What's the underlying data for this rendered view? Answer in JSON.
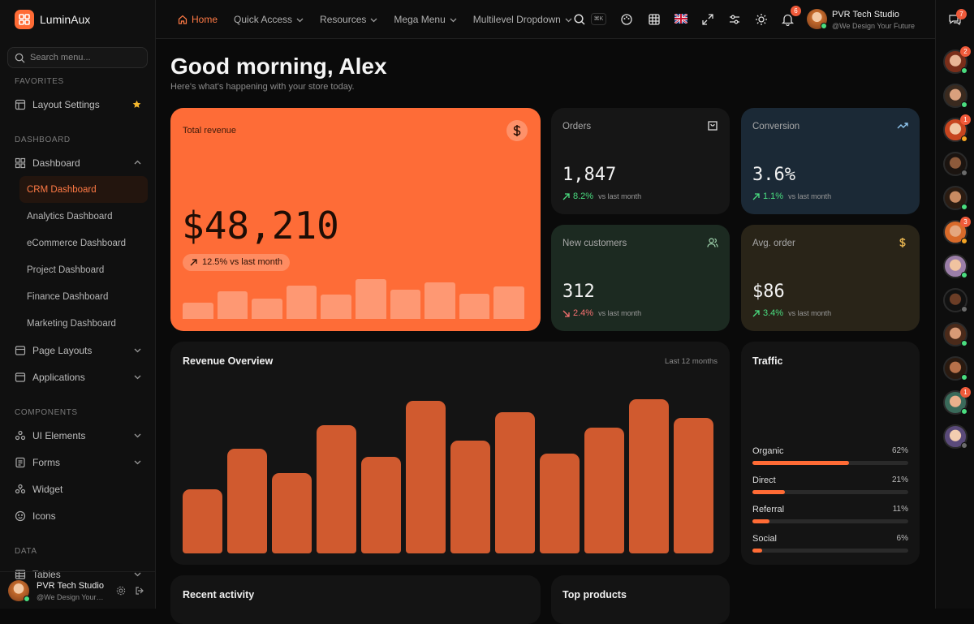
{
  "brand": "LuminAux",
  "search_placeholder": "Search menu...",
  "sidebar": {
    "sections": [
      {
        "title": "FAVORITES",
        "items": [
          {
            "label": "Layout Settings",
            "starred": true
          }
        ]
      },
      {
        "title": "DASHBOARD",
        "items": [
          {
            "label": "Dashboard",
            "has_submenu": true,
            "expanded": true,
            "children": [
              {
                "label": "CRM Dashboard",
                "active": true
              },
              {
                "label": "Analytics Dashboard"
              },
              {
                "label": "eCommerce Dashboard"
              },
              {
                "label": "Project Dashboard"
              },
              {
                "label": "Finance Dashboard"
              },
              {
                "label": "Marketing Dashboard"
              }
            ]
          },
          {
            "label": "Page Layouts",
            "has_submenu": true
          },
          {
            "label": "Applications",
            "has_submenu": true
          }
        ]
      },
      {
        "title": "COMPONENTS",
        "items": [
          {
            "label": "UI Elements",
            "has_submenu": true
          },
          {
            "label": "Forms",
            "has_submenu": true
          },
          {
            "label": "Widget"
          },
          {
            "label": "Icons"
          }
        ]
      },
      {
        "title": "DATA",
        "items": [
          {
            "label": "Tables",
            "has_submenu": true
          }
        ]
      }
    ]
  },
  "user": {
    "name": "PVR Tech Studio",
    "tagline": "@We Design Your Future"
  },
  "topbar": {
    "nav": [
      {
        "label": "Home",
        "active": true
      },
      {
        "label": "Quick Access",
        "has_submenu": true
      },
      {
        "label": "Resources",
        "has_submenu": true
      },
      {
        "label": "Mega Menu",
        "has_submenu": true
      },
      {
        "label": "Multilevel Dropdown",
        "has_submenu": true
      }
    ],
    "search_shortcut": "⌘K",
    "notification_badge": "6",
    "chat_badge": "7"
  },
  "greeting": {
    "title": "Good morning, Alex",
    "subtitle": "Here's what's happening with your store today."
  },
  "revenue_card": {
    "label": "Total revenue",
    "value": "$48,210",
    "change": "12.5% vs last month",
    "sparkline": {
      "values": [
        16,
        27,
        20,
        33,
        24,
        39,
        29,
        36,
        25,
        32
      ],
      "ylim": [
        0,
        40
      ]
    }
  },
  "kpis": [
    {
      "label": "Orders",
      "value": "1,847",
      "change": "8.2%",
      "change_note": "vs last month",
      "trend": "up"
    },
    {
      "label": "Conversion",
      "value": "3.6%",
      "change": "1.1%",
      "change_note": "vs last month",
      "trend": "up"
    },
    {
      "label": "New customers",
      "value": "312",
      "change": "2.4%",
      "change_note": "vs last month",
      "trend": "down"
    },
    {
      "label": "Avg. order",
      "value": "$86",
      "change": "3.4%",
      "change_note": "vs last month",
      "trend": "up"
    }
  ],
  "revenue_overview": {
    "title": "Revenue Overview",
    "period": "Last 12 months",
    "values": [
      79,
      129,
      99,
      158,
      119,
      188,
      139,
      174,
      123,
      155,
      190,
      167
    ],
    "ylim": [
      0,
      200
    ]
  },
  "traffic": {
    "title": "Traffic",
    "sources": [
      {
        "name": "Organic",
        "value": 62,
        "value_label": "62%"
      },
      {
        "name": "Direct",
        "value": 21,
        "value_label": "21%"
      },
      {
        "name": "Referral",
        "value": 11,
        "value_label": "11%"
      },
      {
        "name": "Social",
        "value": 6,
        "value_label": "6%"
      }
    ]
  },
  "recent_activity": {
    "title": "Recent activity"
  },
  "top_products": {
    "title": "Top products"
  },
  "rail_badges": [
    "2",
    null,
    "1",
    null,
    null,
    "3",
    null,
    null,
    null,
    null,
    "1",
    null
  ]
}
